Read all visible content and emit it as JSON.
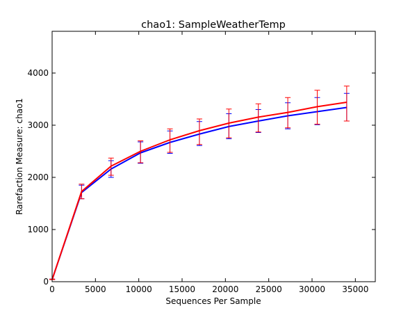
{
  "chart_data": {
    "type": "line",
    "title": "chao1: SampleWeatherTemp",
    "xlabel": "Sequences Per Sample",
    "ylabel": "Rarefaction Measure: chao1",
    "xlim": [
      0,
      37300
    ],
    "ylim": [
      0,
      4800
    ],
    "xticks": [
      0,
      5000,
      10000,
      15000,
      20000,
      25000,
      30000,
      35000
    ],
    "yticks": [
      0,
      1000,
      2000,
      3000,
      4000
    ],
    "xtick_labels": [
      "0",
      "5000",
      "10000",
      "15000",
      "20000",
      "25000",
      "30000",
      "35000"
    ],
    "ytick_labels": [
      "0",
      "1000",
      "2000",
      "3000",
      "4000"
    ],
    "grid": false,
    "legend": "none",
    "x": [
      10,
      3400,
      6800,
      10200,
      13600,
      17000,
      20400,
      23800,
      27200,
      30600,
      34000
    ],
    "series": [
      {
        "color": "#0000ff",
        "values": [
          45,
          1710,
          2160,
          2470,
          2670,
          2830,
          2975,
          3080,
          3180,
          3260,
          3340
        ],
        "err_low": [
          40,
          1590,
          2000,
          2270,
          2460,
          2610,
          2740,
          2860,
          2930,
          3010,
          3080
        ],
        "err_high": [
          50,
          1850,
          2320,
          2680,
          2890,
          3070,
          3220,
          3300,
          3430,
          3530,
          3610
        ]
      },
      {
        "color": "#ff0000",
        "values": [
          45,
          1730,
          2215,
          2500,
          2720,
          2895,
          3040,
          3155,
          3245,
          3355,
          3440
        ],
        "err_low": [
          40,
          1590,
          2040,
          2280,
          2480,
          2630,
          2760,
          2870,
          2950,
          3020,
          3080
        ],
        "err_high": [
          50,
          1870,
          2370,
          2700,
          2930,
          3120,
          3310,
          3410,
          3530,
          3670,
          3750
        ]
      }
    ]
  }
}
